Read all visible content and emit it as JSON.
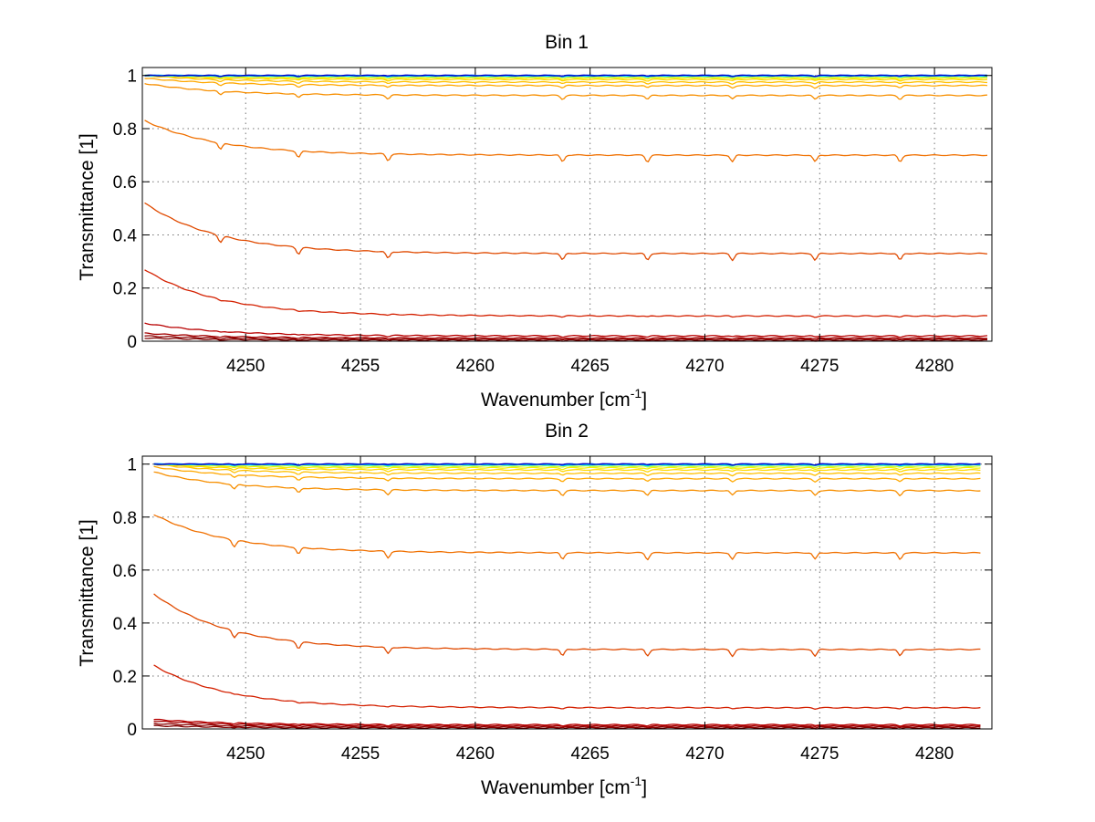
{
  "chart_data": [
    {
      "type": "line",
      "title": "Bin 1",
      "xlabel": "Wavenumber [cm",
      "xlabel_sup": "-1",
      "xlabel_suffix": "]",
      "ylabel": "Transmittance [1]",
      "xlim": [
        4245.5,
        4282.5
      ],
      "ylim": [
        0,
        1.03
      ],
      "xticks": [
        4250,
        4255,
        4260,
        4265,
        4270,
        4275,
        4280
      ],
      "xtick_labels": [
        "4250",
        "4255",
        "4260",
        "4265",
        "4270",
        "4275",
        "4280"
      ],
      "yticks": [
        0,
        0.2,
        0.4,
        0.6,
        0.8,
        1
      ],
      "ytick_labels": [
        "0",
        "0.2",
        "0.4",
        "0.6",
        "0.8",
        "1"
      ],
      "grid": true,
      "x_range": [
        4245.6,
        4282.3
      ],
      "dips": [
        4248.9,
        4252.3,
        4256.2,
        4263.8,
        4267.5,
        4271.2,
        4274.8,
        4278.5
      ],
      "series": [
        {
          "color": "#7f0000",
          "start": 0.012,
          "level": 0.004
        },
        {
          "color": "#8b0000",
          "start": 0.02,
          "level": 0.008
        },
        {
          "color": "#a30000",
          "start": 0.03,
          "level": 0.012
        },
        {
          "color": "#b80000",
          "start": 0.068,
          "level": 0.02
        },
        {
          "color": "#d42000",
          "start": 0.27,
          "level": 0.095
        },
        {
          "color": "#e04a00",
          "start": 0.52,
          "level": 0.33
        },
        {
          "color": "#f07000",
          "start": 0.83,
          "level": 0.7
        },
        {
          "color": "#f78f00",
          "start": 0.97,
          "level": 0.925
        },
        {
          "color": "#ffa800",
          "start": 0.99,
          "level": 0.962
        },
        {
          "color": "#ffc000",
          "start": 1.0,
          "level": 0.975
        },
        {
          "color": "#ffd700",
          "start": 1.0,
          "level": 0.985
        },
        {
          "color": "#f5f000",
          "start": 1.0,
          "level": 0.99
        },
        {
          "color": "#c8ff30",
          "start": 1.0,
          "level": 0.994
        },
        {
          "color": "#60ffa0",
          "start": 1.0,
          "level": 0.997
        },
        {
          "color": "#00e0ff",
          "start": 1.0,
          "level": 0.999
        },
        {
          "color": "#0070ff",
          "start": 1.0,
          "level": 1.0
        },
        {
          "color": "#0000c8",
          "start": 1.0,
          "level": 1.0
        }
      ]
    },
    {
      "type": "line",
      "title": "Bin 2",
      "xlabel": "Wavenumber [cm",
      "xlabel_sup": "-1",
      "xlabel_suffix": "]",
      "ylabel": "Transmittance [1]",
      "xlim": [
        4245.5,
        4282.5
      ],
      "ylim": [
        0,
        1.03
      ],
      "xticks": [
        4250,
        4255,
        4260,
        4265,
        4270,
        4275,
        4280
      ],
      "xtick_labels": [
        "4250",
        "4255",
        "4260",
        "4265",
        "4270",
        "4275",
        "4280"
      ],
      "yticks": [
        0,
        0.2,
        0.4,
        0.6,
        0.8,
        1
      ],
      "ytick_labels": [
        "0",
        "0.2",
        "0.4",
        "0.6",
        "0.8",
        "1"
      ],
      "grid": true,
      "x_range": [
        4246.0,
        4282.0
      ],
      "dips": [
        4249.5,
        4252.3,
        4256.2,
        4263.8,
        4267.5,
        4271.2,
        4274.8,
        4278.5
      ],
      "series": [
        {
          "color": "#7f0000",
          "start": 0.012,
          "level": 0.004
        },
        {
          "color": "#8b0000",
          "start": 0.02,
          "level": 0.008
        },
        {
          "color": "#a30000",
          "start": 0.03,
          "level": 0.012
        },
        {
          "color": "#b80000",
          "start": 0.036,
          "level": 0.016
        },
        {
          "color": "#d42000",
          "start": 0.24,
          "level": 0.08
        },
        {
          "color": "#e04a00",
          "start": 0.51,
          "level": 0.3
        },
        {
          "color": "#f07000",
          "start": 0.81,
          "level": 0.665
        },
        {
          "color": "#f78f00",
          "start": 0.97,
          "level": 0.9
        },
        {
          "color": "#ffa800",
          "start": 0.99,
          "level": 0.945
        },
        {
          "color": "#ffc000",
          "start": 1.0,
          "level": 0.965
        },
        {
          "color": "#ffd700",
          "start": 1.0,
          "level": 0.978
        },
        {
          "color": "#f5f000",
          "start": 1.0,
          "level": 0.986
        },
        {
          "color": "#c8ff30",
          "start": 1.0,
          "level": 0.992
        },
        {
          "color": "#60ffa0",
          "start": 1.0,
          "level": 0.996
        },
        {
          "color": "#00e0ff",
          "start": 1.0,
          "level": 0.998
        },
        {
          "color": "#0070ff",
          "start": 1.0,
          "level": 1.0
        },
        {
          "color": "#0000c8",
          "start": 1.0,
          "level": 1.0
        }
      ]
    }
  ]
}
